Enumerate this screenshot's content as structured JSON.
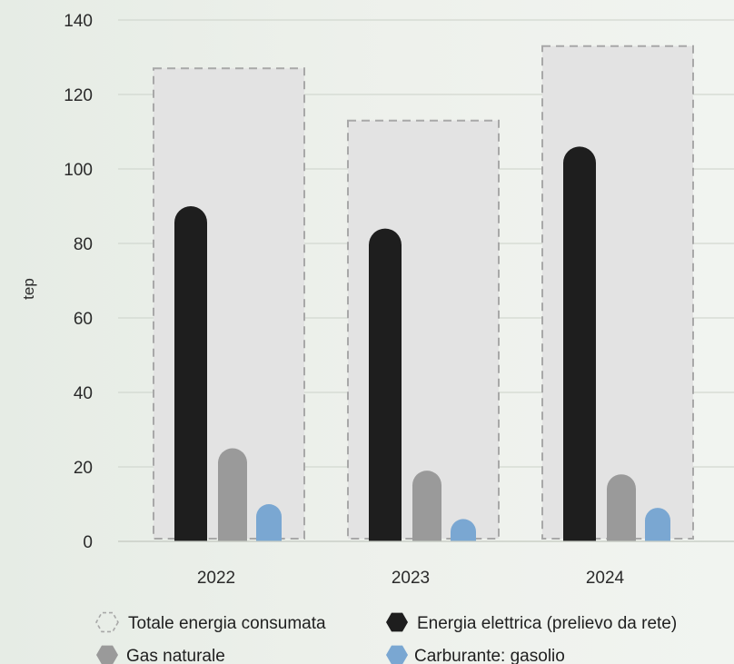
{
  "chart_data": {
    "type": "bar",
    "title": "",
    "xlabel": "",
    "ylabel": "tep",
    "ylim": [
      0,
      140
    ],
    "yticks": [
      0,
      20,
      40,
      60,
      80,
      100,
      120,
      140
    ],
    "grid": "horizontal",
    "legend_position": "bottom",
    "categories": [
      "2022",
      "2023",
      "2024"
    ],
    "series": [
      {
        "name": "Totale energia consumata",
        "values": [
          127,
          113,
          133
        ],
        "color": "#e3e3e3",
        "style": "dashed-box"
      },
      {
        "name": "Energia elettrica (prelievo da rete)",
        "values": [
          90,
          84,
          106
        ],
        "color": "#1e1e1e",
        "style": "rounded-bar"
      },
      {
        "name": "Gas naturale",
        "values": [
          25,
          19,
          18
        ],
        "color": "#9a9a9a",
        "style": "rounded-bar"
      },
      {
        "name": "Carburante: gasolio",
        "values": [
          10,
          6,
          9
        ],
        "color": "#7aa7d2",
        "style": "rounded-bar"
      }
    ]
  }
}
